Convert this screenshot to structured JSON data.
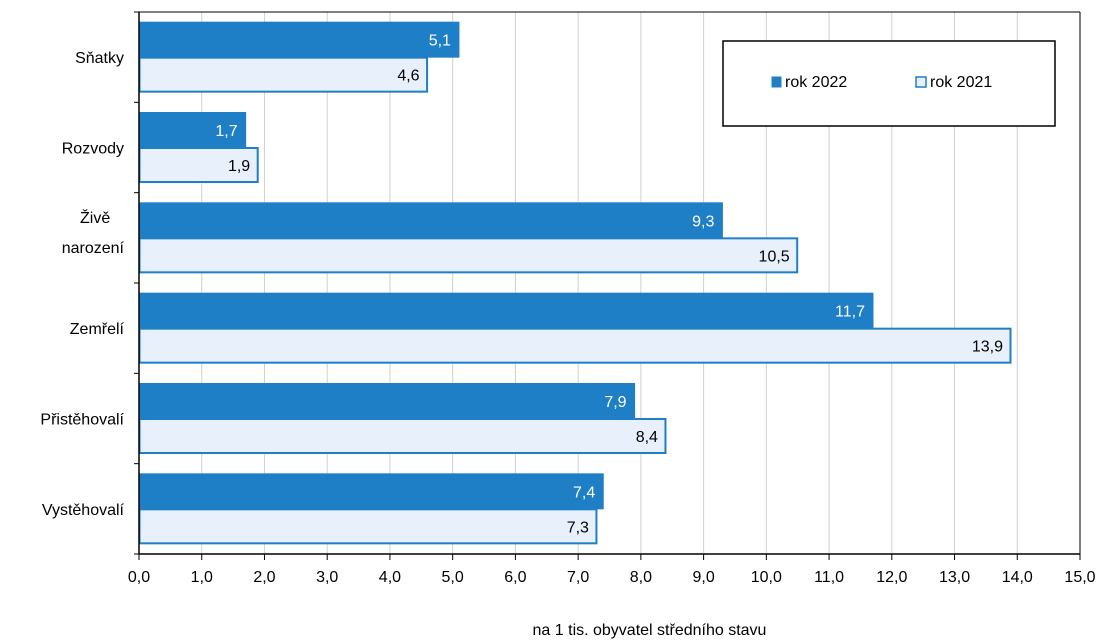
{
  "chart_data": {
    "type": "bar",
    "orientation": "horizontal",
    "categories": [
      "Sňatky",
      "Rozvody",
      "Živě narození",
      "Zemřelí",
      "Přistěhovalí",
      "Vystěhovalí"
    ],
    "series": [
      {
        "name": "rok 2022",
        "values": [
          5.1,
          1.7,
          9.3,
          11.7,
          7.9,
          7.4
        ],
        "labels": [
          "5,1",
          "1,7",
          "9,3",
          "11,7",
          "7,9",
          "7,4"
        ],
        "color": "#1f7fc6"
      },
      {
        "name": "rok 2021",
        "values": [
          4.6,
          1.9,
          10.5,
          13.9,
          8.4,
          7.3
        ],
        "labels": [
          "4,6",
          "1,9",
          "10,5",
          "13,9",
          "8,4",
          "7,3"
        ],
        "color": "#e8f1fb",
        "border_color": "#1f7fc6"
      }
    ],
    "xlabel": "na 1 tis. obyvatel středního stavu",
    "xlim": [
      0,
      15
    ],
    "ticks": [
      "0,0",
      "1,0",
      "2,0",
      "3,0",
      "4,0",
      "5,0",
      "6,0",
      "7,0",
      "8,0",
      "9,0",
      "10,0",
      "11,0",
      "12,0",
      "13,0",
      "14,0",
      "15,0"
    ],
    "grid": true,
    "legend_position": "top-right"
  }
}
